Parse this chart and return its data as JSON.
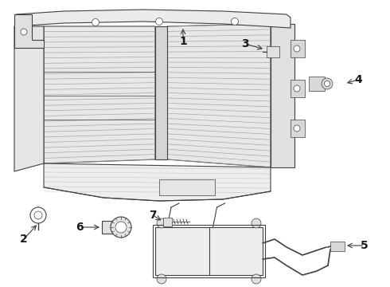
{
  "bg_color": "#ffffff",
  "lc": "#404040",
  "lc2": "#606060",
  "lc_thin": "#888888",
  "lw": 0.8,
  "lw_thin": 0.5,
  "lw_hatch": 0.45
}
